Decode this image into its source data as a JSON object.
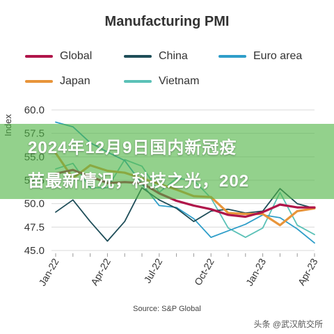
{
  "chart_data": {
    "type": "line",
    "title": "Manufacturing PMI",
    "xlabel": "",
    "ylabel": "Index",
    "ylim": [
      45.0,
      60.0
    ],
    "yticks": [
      "45.0",
      "47.5",
      "50.0",
      "52.5",
      "55.0",
      "57.5",
      "60.0"
    ],
    "x": [
      "Jan-22",
      "Feb-22",
      "Mar-22",
      "Apr-22",
      "May-22",
      "Jun-22",
      "Jul-22",
      "Aug-22",
      "Sep-22",
      "Oct-22",
      "Nov-22",
      "Dec-22",
      "Jan-23",
      "Feb-23",
      "Mar-23",
      "Apr-23"
    ],
    "xtick_labels": [
      "Jan-22",
      "Apr-22",
      "Jul-22",
      "Oct-22",
      "Jan-23",
      "Apr-23"
    ],
    "grid": "horizontal",
    "legend_position": "top",
    "series": [
      {
        "name": "Global",
        "color": "#b0154a",
        "values": [
          53.2,
          53.6,
          52.9,
          52.2,
          52.3,
          52.2,
          51.1,
          50.3,
          49.8,
          49.4,
          48.8,
          48.6,
          49.1,
          49.9,
          49.6,
          49.6
        ]
      },
      {
        "name": "China",
        "color": "#1f4e59",
        "values": [
          49.1,
          50.4,
          48.1,
          46.0,
          48.1,
          51.7,
          50.4,
          49.5,
          48.1,
          49.2,
          49.4,
          49.0,
          49.2,
          51.6,
          50.0,
          49.5
        ]
      },
      {
        "name": "Euro area",
        "color": "#2f9ec9",
        "values": [
          58.7,
          58.2,
          56.5,
          55.5,
          54.6,
          52.1,
          49.8,
          49.6,
          48.4,
          46.4,
          47.1,
          47.8,
          48.8,
          48.5,
          47.3,
          45.8
        ]
      },
      {
        "name": "Japan",
        "color": "#e8953a",
        "values": [
          55.4,
          52.7,
          54.1,
          53.5,
          53.3,
          52.7,
          52.1,
          51.5,
          50.8,
          50.7,
          49.0,
          48.9,
          48.9,
          47.7,
          49.2,
          49.5
        ]
      },
      {
        "name": "Vietnam",
        "color": "#5bc1b7",
        "values": [
          53.7,
          54.3,
          51.7,
          51.7,
          54.7,
          54.0,
          51.2,
          52.7,
          52.5,
          50.6,
          47.4,
          46.4,
          47.4,
          51.2,
          47.7,
          46.7
        ]
      }
    ],
    "source": "Source: S&P Global"
  },
  "overlay": {
    "line1": "2024年12月9日国内新冠疫",
    "line2": "苗最新情况，科技之光，202"
  },
  "watermark": "头条 @武汉航交所"
}
